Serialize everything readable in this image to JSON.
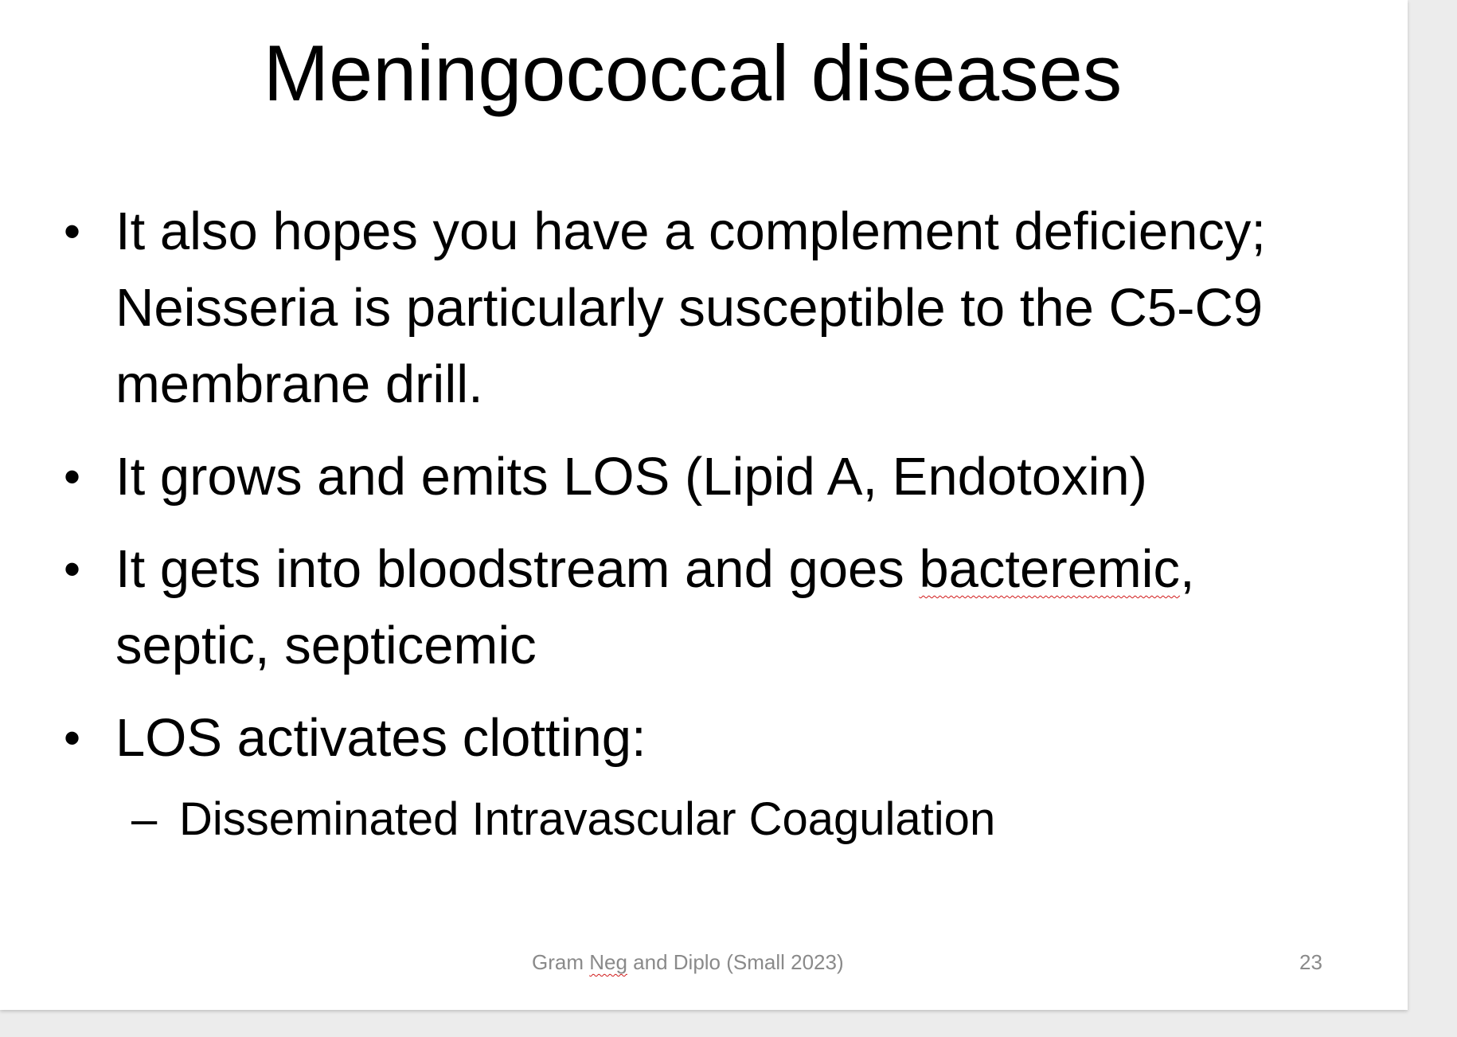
{
  "slide": {
    "title": "Meningococcal diseases",
    "bullets": [
      {
        "text": "It also hopes you have a complement deficiency; Neisseria is particularly susceptible to the C5-C9 membrane drill."
      },
      {
        "text": "It grows and emits LOS (Lipid A, Endotoxin)"
      },
      {
        "text_before": "It gets into bloodstream and goes ",
        "flagged_word": "bacteremic",
        "text_after": ", septic, septicemic"
      },
      {
        "text": "LOS activates clotting:"
      }
    ],
    "sub_bullets": [
      {
        "text": "Disseminated Intravascular Coagulation"
      }
    ],
    "bullet_glyph": "•",
    "sub_bullet_glyph": "–",
    "footer": {
      "before": "Gram ",
      "flagged_word": "Neg",
      "after": " and Diplo (Small 2023)"
    },
    "page_number": "23"
  },
  "colors": {
    "spellcheck_underline": "#d11a1a",
    "footer_text": "#8a8a8a",
    "background": "#ececec"
  }
}
